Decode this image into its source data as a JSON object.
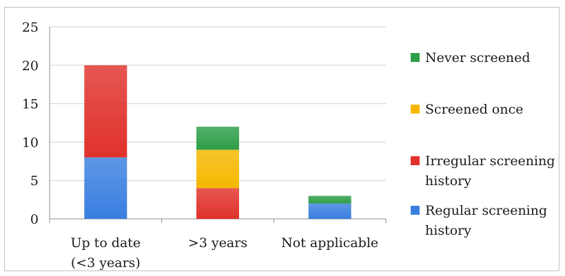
{
  "chart_data": {
    "type": "bar",
    "stacked": true,
    "categories": [
      [
        "Up to date",
        "(<3 years)"
      ],
      [
        ">3 years"
      ],
      [
        "Not applicable"
      ]
    ],
    "series": [
      {
        "name": "Regular screening history",
        "label_lines": [
          "Regular screening",
          "history"
        ],
        "color": "#3a7fe0",
        "values": [
          8,
          0,
          2
        ]
      },
      {
        "name": "Irregular screening history",
        "label_lines": [
          "Irregular screening",
          "history"
        ],
        "color": "#e0322b",
        "values": [
          12,
          4,
          0
        ]
      },
      {
        "name": "Screened once",
        "label_lines": [
          "Screened once"
        ],
        "color": "#f5b800",
        "values": [
          0,
          5,
          0
        ]
      },
      {
        "name": "Never screened",
        "label_lines": [
          "Never screened"
        ],
        "color": "#2e9e48",
        "values": [
          0,
          3,
          1
        ]
      }
    ],
    "ylim": [
      0,
      25
    ],
    "yticks": [
      0,
      5,
      10,
      15,
      20,
      25
    ],
    "grid": true,
    "legend": "right",
    "title": "",
    "xlabel": "",
    "ylabel": ""
  }
}
